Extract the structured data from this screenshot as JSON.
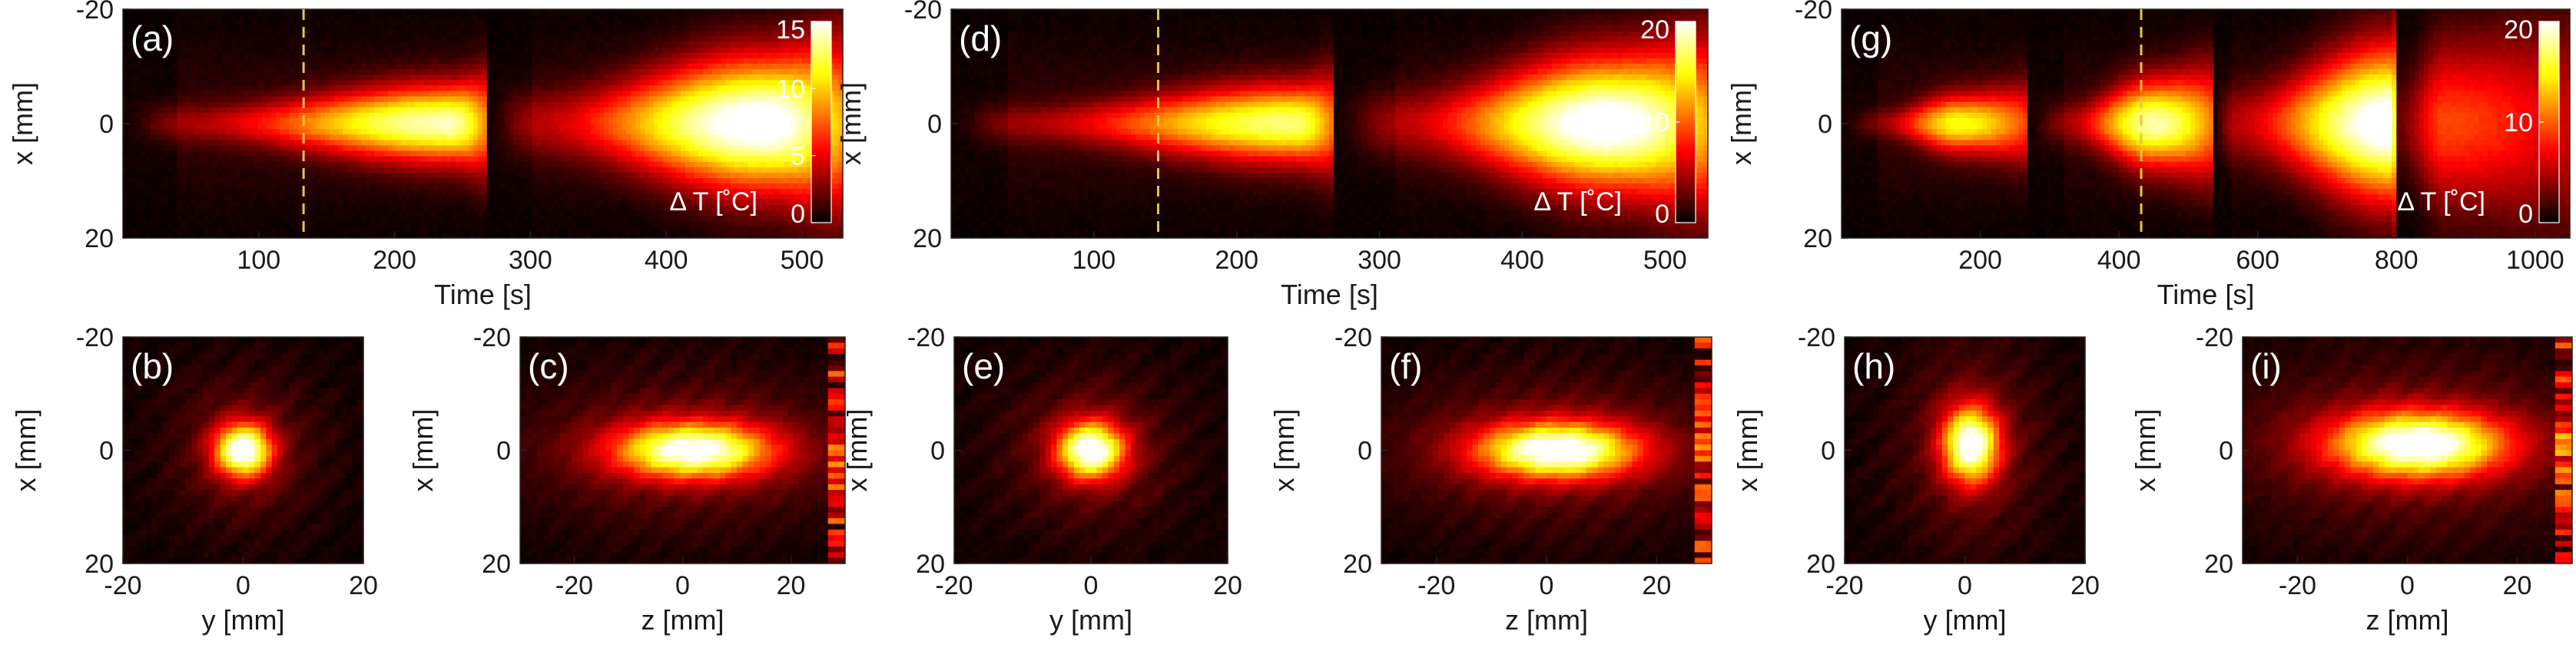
{
  "figure": {
    "colors": {
      "background": "#000000",
      "colormap": "hot",
      "axis": "#262626",
      "marker": "#e6c640"
    },
    "colorbar_label": "Δ T [˚C]"
  },
  "chart_data": [
    {
      "id": "a",
      "panel_label": "(a)",
      "type": "heatmap",
      "xlabel": "Time [s]",
      "ylabel": "x [mm]",
      "xlim": [
        0,
        530
      ],
      "ylim": [
        -20,
        20
      ],
      "y_reversed": true,
      "xticks": [
        100,
        200,
        300,
        400,
        500
      ],
      "yticks": [
        -20,
        0,
        20
      ],
      "segments": [
        {
          "t_start": 0,
          "t_end": 268,
          "peak_dT": 13,
          "hot_from": 40,
          "hot_to": 240,
          "half_width_mm": 4
        },
        {
          "t_start": 268,
          "t_end": 530,
          "peak_dT": 15,
          "hot_from": 300,
          "hot_to": 470,
          "half_width_mm": 7
        }
      ],
      "marker_time": 133,
      "colorbar": {
        "ticks": [
          0,
          5,
          10,
          15
        ],
        "range": [
          0,
          15
        ]
      }
    },
    {
      "id": "d",
      "panel_label": "(d)",
      "type": "heatmap",
      "xlabel": "Time [s]",
      "ylabel": "x [mm]",
      "xlim": [
        0,
        530
      ],
      "ylim": [
        -20,
        20
      ],
      "y_reversed": true,
      "xticks": [
        100,
        200,
        300,
        400,
        500
      ],
      "yticks": [
        -20,
        0,
        20
      ],
      "segments": [
        {
          "t_start": 0,
          "t_end": 268,
          "peak_dT": 16,
          "hot_from": 40,
          "hot_to": 240,
          "half_width_mm": 4
        },
        {
          "t_start": 268,
          "t_end": 530,
          "peak_dT": 20,
          "hot_from": 310,
          "hot_to": 460,
          "half_width_mm": 7
        }
      ],
      "marker_time": 145,
      "colorbar": {
        "ticks": [
          0,
          10,
          20
        ],
        "range": [
          0,
          20
        ]
      }
    },
    {
      "id": "g",
      "panel_label": "(g)",
      "type": "heatmap",
      "xlabel": "Time [s]",
      "ylabel": "x [mm]",
      "xlim": [
        0,
        1050
      ],
      "ylim": [
        -20,
        20
      ],
      "y_reversed": true,
      "xticks": [
        200,
        400,
        600,
        800,
        1000
      ],
      "yticks": [
        -20,
        0,
        20
      ],
      "segments": [
        {
          "t_start": 0,
          "t_end": 268,
          "peak_dT": 14,
          "hot_from": 50,
          "hot_to": 170,
          "half_width_mm": 3
        },
        {
          "t_start": 268,
          "t_end": 536,
          "peak_dT": 17,
          "hot_from": 320,
          "hot_to": 450,
          "half_width_mm": 4.5
        },
        {
          "t_start": 536,
          "t_end": 800,
          "peak_dT": 20,
          "hot_from": 560,
          "hot_to": 790,
          "half_width_mm": 8
        },
        {
          "t_start": 800,
          "t_end": 1050,
          "peak_dT": 8,
          "hot_from": 800,
          "hot_to": 870,
          "half_width_mm": 9
        }
      ],
      "marker_time": 432,
      "colorbar": {
        "ticks": [
          0,
          10,
          20
        ],
        "range": [
          0,
          20
        ]
      }
    },
    {
      "id": "b",
      "panel_label": "(b)",
      "type": "heatmap",
      "xlabel": "y [mm]",
      "ylabel": "x [mm]",
      "xlim": [
        -20,
        20
      ],
      "ylim": [
        -20,
        20
      ],
      "xticks": [
        -20,
        0,
        20
      ],
      "yticks": [
        -20,
        0,
        20
      ],
      "spot": {
        "cx": 0,
        "cy": 0,
        "sx": 3.2,
        "sy": 3.2,
        "peak": 0.95
      }
    },
    {
      "id": "c",
      "panel_label": "(c)",
      "type": "heatmap",
      "xlabel": "z [mm]",
      "ylabel": "x [mm]",
      "xlim": [
        -30,
        30
      ],
      "ylim": [
        -20,
        20
      ],
      "xticks": [
        -20,
        0,
        20
      ],
      "yticks": [
        -20,
        0,
        20
      ],
      "spot": {
        "cx": 2,
        "cy": 0,
        "sx": 10,
        "sy": 3.4,
        "peak": 0.9
      }
    },
    {
      "id": "e",
      "panel_label": "(e)",
      "type": "heatmap",
      "xlabel": "y [mm]",
      "ylabel": "x [mm]",
      "xlim": [
        -20,
        20
      ],
      "ylim": [
        -20,
        20
      ],
      "xticks": [
        -20,
        0,
        20
      ],
      "yticks": [
        -20,
        0,
        20
      ],
      "spot": {
        "cx": 0,
        "cy": 0,
        "sx": 3.4,
        "sy": 3.4,
        "peak": 0.95
      }
    },
    {
      "id": "f",
      "panel_label": "(f)",
      "type": "heatmap",
      "xlabel": "z [mm]",
      "ylabel": "x [mm]",
      "xlim": [
        -30,
        30
      ],
      "ylim": [
        -20,
        20
      ],
      "xticks": [
        -20,
        0,
        20
      ],
      "yticks": [
        -20,
        0,
        20
      ],
      "spot": {
        "cx": 2,
        "cy": 0,
        "sx": 10,
        "sy": 3.4,
        "peak": 0.95
      }
    },
    {
      "id": "h",
      "panel_label": "(h)",
      "type": "heatmap",
      "xlabel": "y [mm]",
      "ylabel": "x [mm]",
      "xlim": [
        -20,
        20
      ],
      "ylim": [
        -20,
        20
      ],
      "xticks": [
        -20,
        0,
        20
      ],
      "yticks": [
        -20,
        0,
        20
      ],
      "spot": {
        "cx": 1,
        "cy": -1,
        "sx": 3.2,
        "sy": 4.5,
        "peak": 0.95
      }
    },
    {
      "id": "i",
      "panel_label": "(i)",
      "type": "heatmap",
      "xlabel": "z [mm]",
      "ylabel": "x [mm]",
      "xlim": [
        -30,
        30
      ],
      "ylim": [
        -20,
        20
      ],
      "xticks": [
        -20,
        0,
        20
      ],
      "yticks": [
        -20,
        0,
        20
      ],
      "spot": {
        "cx": 2,
        "cy": -1,
        "sx": 11,
        "sy": 4,
        "peak": 0.95
      }
    }
  ]
}
